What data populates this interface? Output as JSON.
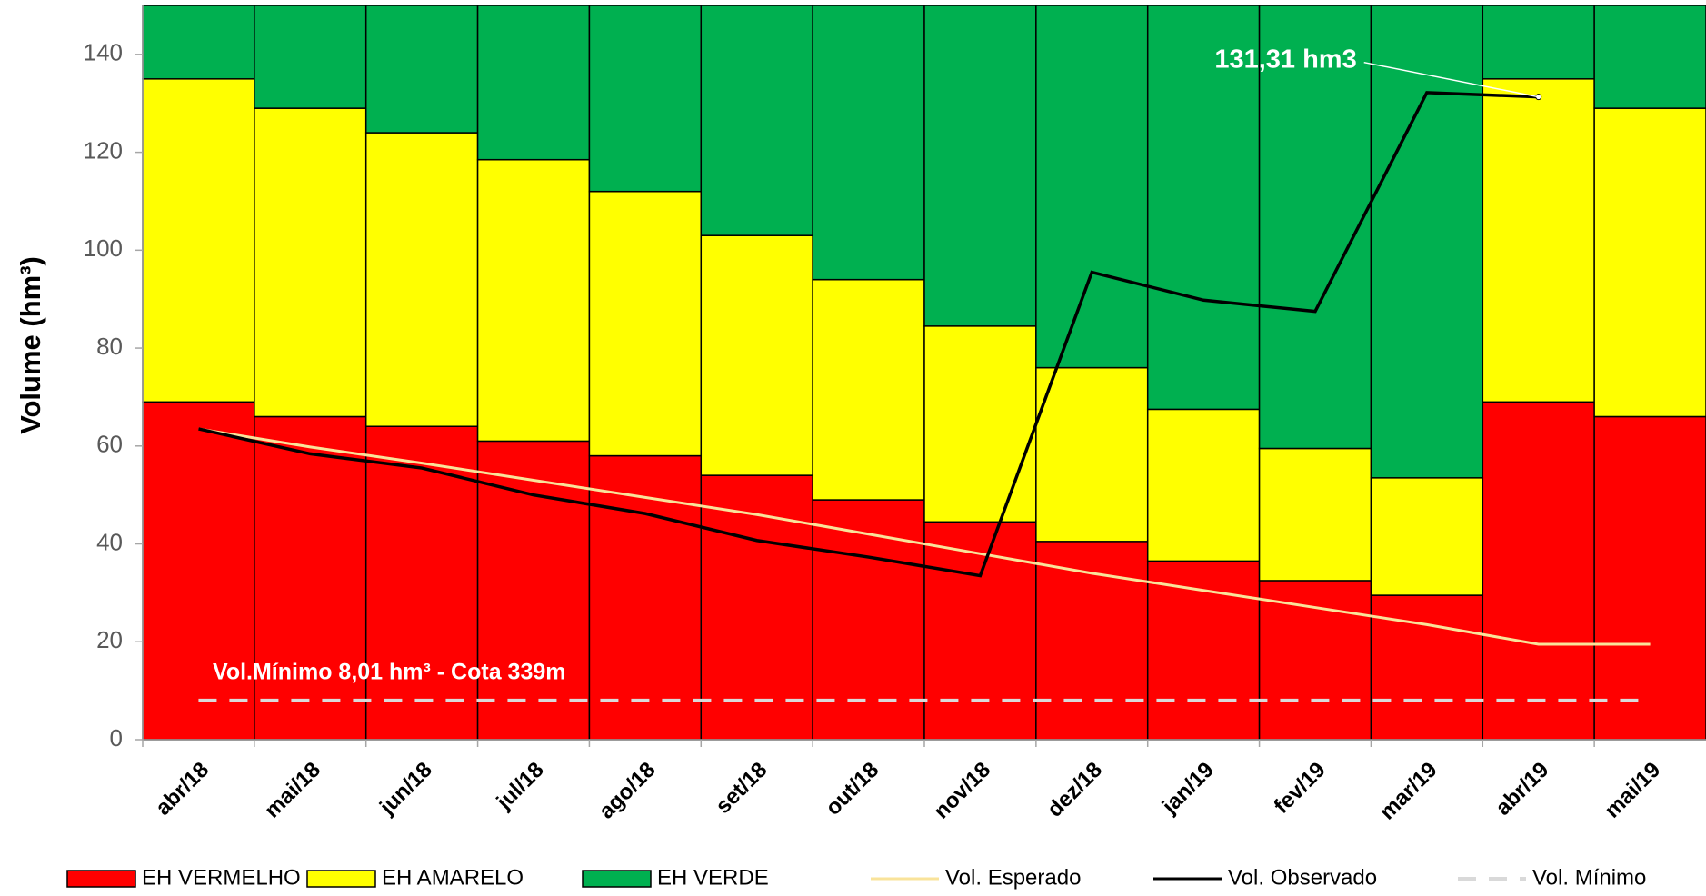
{
  "chart_data": {
    "type": "bar",
    "stacked": true,
    "y_label": "Volume (hm³)",
    "categories": [
      "abr/18",
      "mai/18",
      "jun/18",
      "jul/18",
      "ago/18",
      "set/18",
      "out/18",
      "nov/18",
      "dez/18",
      "jan/19",
      "fev/19",
      "mar/19",
      "abr/19",
      "mai/19"
    ],
    "series": [
      {
        "name": "EH VERMELHO",
        "type": "bar",
        "color": "#ff0000",
        "values": [
          69,
          66,
          64,
          61,
          58,
          54,
          49,
          44.5,
          40.5,
          36.5,
          32.5,
          29.5,
          69,
          66
        ]
      },
      {
        "name": "EH AMARELO",
        "type": "bar",
        "color": "#ffff00",
        "values": [
          66,
          63,
          60,
          57.5,
          54,
          49,
          45,
          40,
          35.5,
          31,
          27,
          24,
          66,
          63
        ]
      },
      {
        "name": "EH VERDE",
        "type": "bar",
        "color": "#00b050",
        "values": [
          15,
          21,
          26,
          31.5,
          38,
          47,
          56,
          65.5,
          74,
          82.5,
          90.5,
          96.5,
          15,
          21
        ]
      },
      {
        "name": "Vol. Esperado",
        "type": "line",
        "color": "#f9e39a",
        "values": [
          63.5,
          59.8,
          56.5,
          53,
          49.5,
          46,
          42,
          38,
          34,
          30.5,
          27,
          23.5,
          19.5,
          19.5
        ]
      },
      {
        "name": "Vol. Observado",
        "type": "line",
        "color": "#000000",
        "values": [
          63.5,
          58.4,
          55.5,
          50,
          46.2,
          40.7,
          37.3,
          33.5,
          95.5,
          89.8,
          87.5,
          132.2,
          131.31,
          null
        ],
        "value_labels": [
          null,
          null,
          null,
          null,
          null,
          null,
          null,
          null,
          null,
          null,
          null,
          null,
          "131,31 hm3",
          null
        ]
      },
      {
        "name": "Vol. Mínimo",
        "type": "line",
        "dashed": true,
        "color": "#d9d9d9",
        "values": [
          8.01,
          8.01,
          8.01,
          8.01,
          8.01,
          8.01,
          8.01,
          8.01,
          8.01,
          8.01,
          8.01,
          8.01,
          8.01,
          8.01
        ]
      }
    ],
    "annotation": "Vol.Mínimo 8,01 hm³ - Cota 339m",
    "ylim": [
      0,
      150
    ],
    "yticks": [
      0,
      20,
      40,
      60,
      80,
      100,
      120,
      140
    ]
  }
}
